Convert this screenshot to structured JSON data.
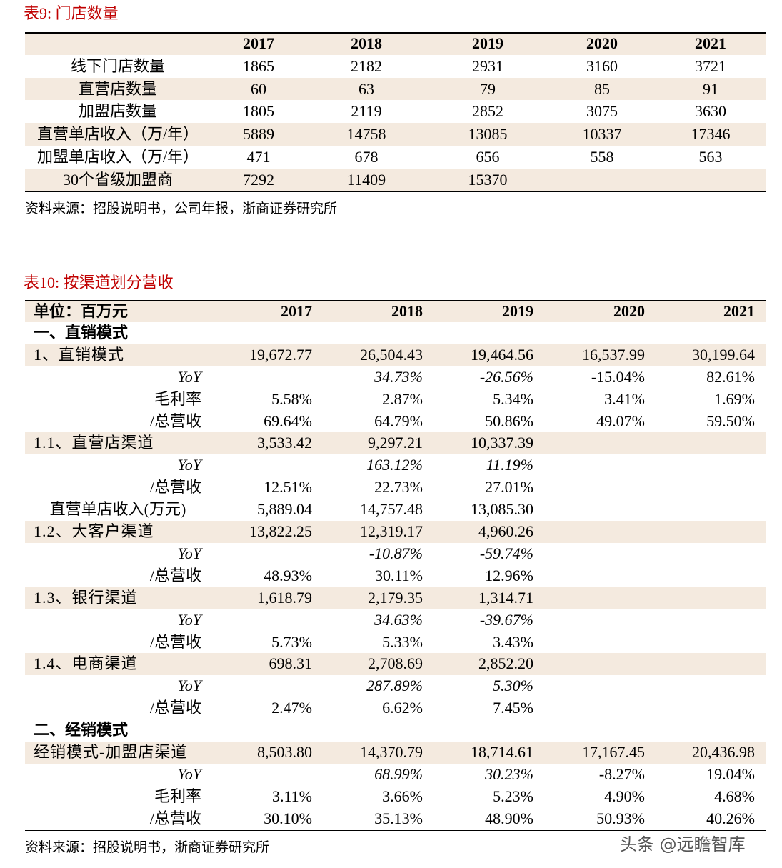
{
  "table9": {
    "title": "表9:  门店数量",
    "years": [
      "2017",
      "2018",
      "2019",
      "2020",
      "2021"
    ],
    "rows": [
      [
        "线下门店数量",
        1865,
        2182,
        2931,
        3160,
        3721
      ],
      [
        "直营店数量",
        60,
        63,
        79,
        85,
        91
      ],
      [
        "加盟店数量",
        1805,
        2119,
        2852,
        3075,
        3630
      ],
      [
        "直营单店收入（万/年）",
        5889,
        14758,
        13085,
        10337,
        17346
      ],
      [
        "加盟单店收入（万/年）",
        471,
        678,
        656,
        558,
        563
      ],
      [
        "30个省级加盟商",
        7292,
        11409,
        15370,
        null,
        null
      ]
    ],
    "source": "资料来源：招股说明书，公司年报，浙商证券研究所"
  },
  "table10": {
    "title": "表10:  按渠道划分营收",
    "unit": "单位：百万元",
    "years": [
      "2017",
      "2018",
      "2019",
      "2020",
      "2021"
    ],
    "rows": [
      [
        "一、直销模式"
      ],
      [
        "1、直销模式",
        "19,672.77",
        "26,504.43",
        "19,464.56",
        "16,537.99",
        "30,199.64"
      ],
      [
        "YoY",
        null,
        "34.73%",
        "-26.56%",
        "-15.04%",
        "82.61%"
      ],
      [
        "毛利率",
        "5.58%",
        "2.87%",
        "5.34%",
        "3.41%",
        "1.69%"
      ],
      [
        "/总营收",
        "69.64%",
        "64.79%",
        "50.86%",
        "49.07%",
        "59.50%"
      ],
      [
        "1.1、直营店渠道",
        "3,533.42",
        "9,297.21",
        "10,337.39",
        null,
        null
      ],
      [
        "YoY",
        null,
        "163.12%",
        "11.19%",
        null,
        null
      ],
      [
        "/总营收",
        "12.51%",
        "22.73%",
        "27.01%",
        null,
        null
      ],
      [
        "直营单店收入(万元)",
        "5,889.04",
        "14,757.48",
        "13,085.30",
        null,
        null
      ],
      [
        "1.2、大客户渠道",
        "13,822.25",
        "12,319.17",
        "4,960.26",
        null,
        null
      ],
      [
        "YoY",
        null,
        "-10.87%",
        "-59.74%",
        null,
        null
      ],
      [
        "/总营收",
        "48.93%",
        "30.11%",
        "12.96%",
        null,
        null
      ],
      [
        "1.3、银行渠道",
        "1,618.79",
        "2,179.35",
        "1,314.71",
        null,
        null
      ],
      [
        "YoY",
        null,
        "34.63%",
        "-39.67%",
        null,
        null
      ],
      [
        "/总营收",
        "5.73%",
        "5.33%",
        "3.43%",
        null,
        null
      ],
      [
        "1.4、电商渠道",
        "698.31",
        "2,708.69",
        "2,852.20",
        null,
        null
      ],
      [
        "YoY",
        null,
        "287.89%",
        "5.30%",
        null,
        null
      ],
      [
        "/总营收",
        "2.47%",
        "6.62%",
        "7.45%",
        null,
        null
      ],
      [
        "二、经销模式"
      ],
      [
        "经销模式-加盟店渠道",
        "8,503.80",
        "14,370.79",
        "18,714.61",
        "17,167.45",
        "20,436.98"
      ],
      [
        "YoY",
        null,
        "68.99%",
        "30.23%",
        "-8.27%",
        "19.04%"
      ],
      [
        "毛利率",
        "3.11%",
        "3.66%",
        "5.23%",
        "4.90%",
        "4.68%"
      ],
      [
        "/总营收",
        "30.10%",
        "35.13%",
        "48.90%",
        "50.93%",
        "40.26%"
      ]
    ],
    "source": "资料来源：招股说明书，浙商证券研究所"
  },
  "watermark": "头条 @远瞻智库"
}
